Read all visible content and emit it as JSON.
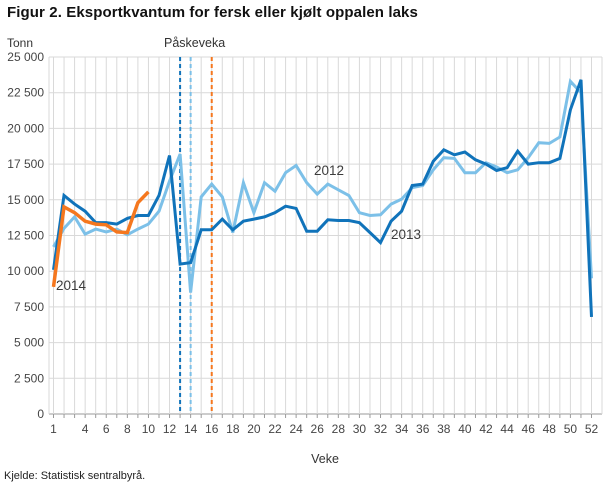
{
  "figure": {
    "title": "Figur 2. Eksportkvantum for fersk eller kjølt oppalen laks",
    "source": "Kjelde: Statistisk sentralbyrå."
  },
  "chart_data": {
    "type": "line",
    "title": "Figur 2. Eksportkvantum for fersk eller kjølt oppalen laks",
    "source": "Kjelde: Statistisk sentralbyrå.",
    "grid": true,
    "legend_position": "inline-labels",
    "y_axis": {
      "unit": "Tonn",
      "min": 0,
      "max": 25000,
      "tick_step": 2500,
      "tick_labels": [
        "25 000",
        "22 500",
        "20 000",
        "17 500",
        "15 000",
        "12 500",
        "10 000",
        "7 500",
        "5 000",
        "2 500",
        "0"
      ]
    },
    "x_axis": {
      "label": "Veke",
      "min": 1,
      "max": 52,
      "tick_labels": [
        "1",
        "4",
        "6",
        "8",
        "10",
        "12",
        "14",
        "16",
        "18",
        "20",
        "22",
        "24",
        "26",
        "28",
        "30",
        "32",
        "34",
        "36",
        "38",
        "40",
        "42",
        "44",
        "46",
        "48",
        "50",
        "52"
      ]
    },
    "colors": {
      "grid": "#d9d9d9",
      "axis": "#9a9a9a",
      "series_2012": "#7cc0e8",
      "series_2013": "#1073ba",
      "series_2014": "#f5771e"
    },
    "series": [
      {
        "name": "2012",
        "color": "#7cc0e8",
        "start_week": 1,
        "values": [
          11700,
          13000,
          13800,
          12600,
          12950,
          12750,
          12950,
          12550,
          12950,
          13300,
          14200,
          16300,
          18200,
          8500,
          15200,
          16100,
          15200,
          12700,
          16200,
          14100,
          16200,
          15600,
          16900,
          17400,
          16200,
          15400,
          16100,
          15700,
          15300,
          14100,
          13900,
          13950,
          14700,
          15050,
          15850,
          16000,
          17100,
          17950,
          17900,
          16900,
          16900,
          17600,
          17300,
          16900,
          17100,
          17950,
          19000,
          18950,
          19400,
          23300,
          22500,
          9500
        ]
      },
      {
        "name": "2013",
        "color": "#1073ba",
        "start_week": 1,
        "values": [
          10100,
          15300,
          14700,
          14200,
          13400,
          13400,
          13300,
          13700,
          13900,
          13900,
          15300,
          18100,
          10500,
          10600,
          12900,
          12900,
          13650,
          12900,
          13500,
          13650,
          13800,
          14100,
          14550,
          14400,
          12800,
          12800,
          13600,
          13550,
          13550,
          13400,
          12700,
          12000,
          13500,
          14200,
          16000,
          16100,
          17700,
          18500,
          18150,
          18350,
          17800,
          17500,
          17050,
          17250,
          18400,
          17500,
          17600,
          17600,
          17900,
          21300,
          23400,
          6800
        ]
      },
      {
        "name": "2014",
        "color": "#f5771e",
        "start_week": 1,
        "values": [
          8900,
          14500,
          14100,
          13500,
          13300,
          13250,
          12750,
          12700,
          14800,
          15550
        ]
      }
    ],
    "annotations": {
      "easter_label": "Påskeveka",
      "easter_lines": [
        {
          "series": "2013",
          "week": 13,
          "color": "#1073ba"
        },
        {
          "series": "2012",
          "week": 14,
          "color": "#7cc0e8"
        },
        {
          "series": "2014",
          "week": 16,
          "color": "#f5771e"
        }
      ]
    }
  }
}
